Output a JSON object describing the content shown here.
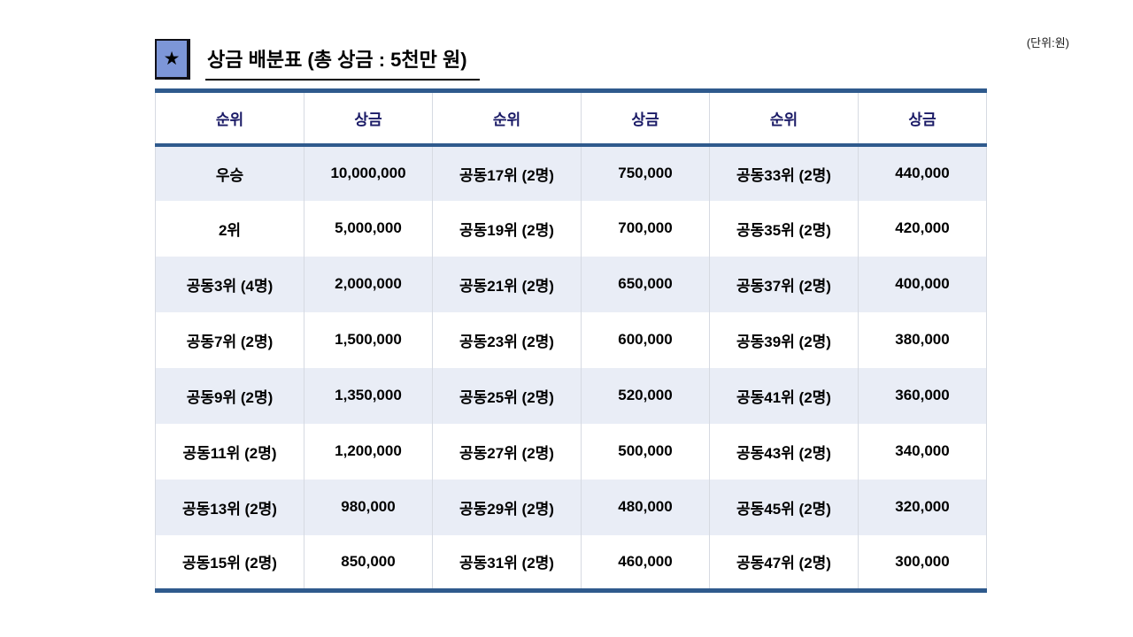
{
  "page": {
    "unit_note": "(단위:원)",
    "title": "상금 배분표 (총 상금 : 5천만 원)",
    "star_glyph": "★"
  },
  "colors": {
    "border_navy": "#2f5a8d",
    "header_text_navy": "#1a1a66",
    "alt_row_bg": "#e9edf6",
    "star_box_fill": "#7d96d8"
  },
  "table": {
    "headers": [
      "순위",
      "상금",
      "순위",
      "상금",
      "순위",
      "상금"
    ],
    "rows": [
      [
        "우승",
        "10,000,000",
        "공동17위 (2명)",
        "750,000",
        "공동33위 (2명)",
        "440,000"
      ],
      [
        "2위",
        "5,000,000",
        "공동19위 (2명)",
        "700,000",
        "공동35위 (2명)",
        "420,000"
      ],
      [
        "공동3위 (4명)",
        "2,000,000",
        "공동21위 (2명)",
        "650,000",
        "공동37위 (2명)",
        "400,000"
      ],
      [
        "공동7위 (2명)",
        "1,500,000",
        "공동23위 (2명)",
        "600,000",
        "공동39위 (2명)",
        "380,000"
      ],
      [
        "공동9위 (2명)",
        "1,350,000",
        "공동25위 (2명)",
        "520,000",
        "공동41위 (2명)",
        "360,000"
      ],
      [
        "공동11위 (2명)",
        "1,200,000",
        "공동27위 (2명)",
        "500,000",
        "공동43위 (2명)",
        "340,000"
      ],
      [
        "공동13위 (2명)",
        "980,000",
        "공동29위 (2명)",
        "480,000",
        "공동45위 (2명)",
        "320,000"
      ],
      [
        "공동15위 (2명)",
        "850,000",
        "공동31위 (2명)",
        "460,000",
        "공동47위 (2명)",
        "300,000"
      ]
    ]
  }
}
